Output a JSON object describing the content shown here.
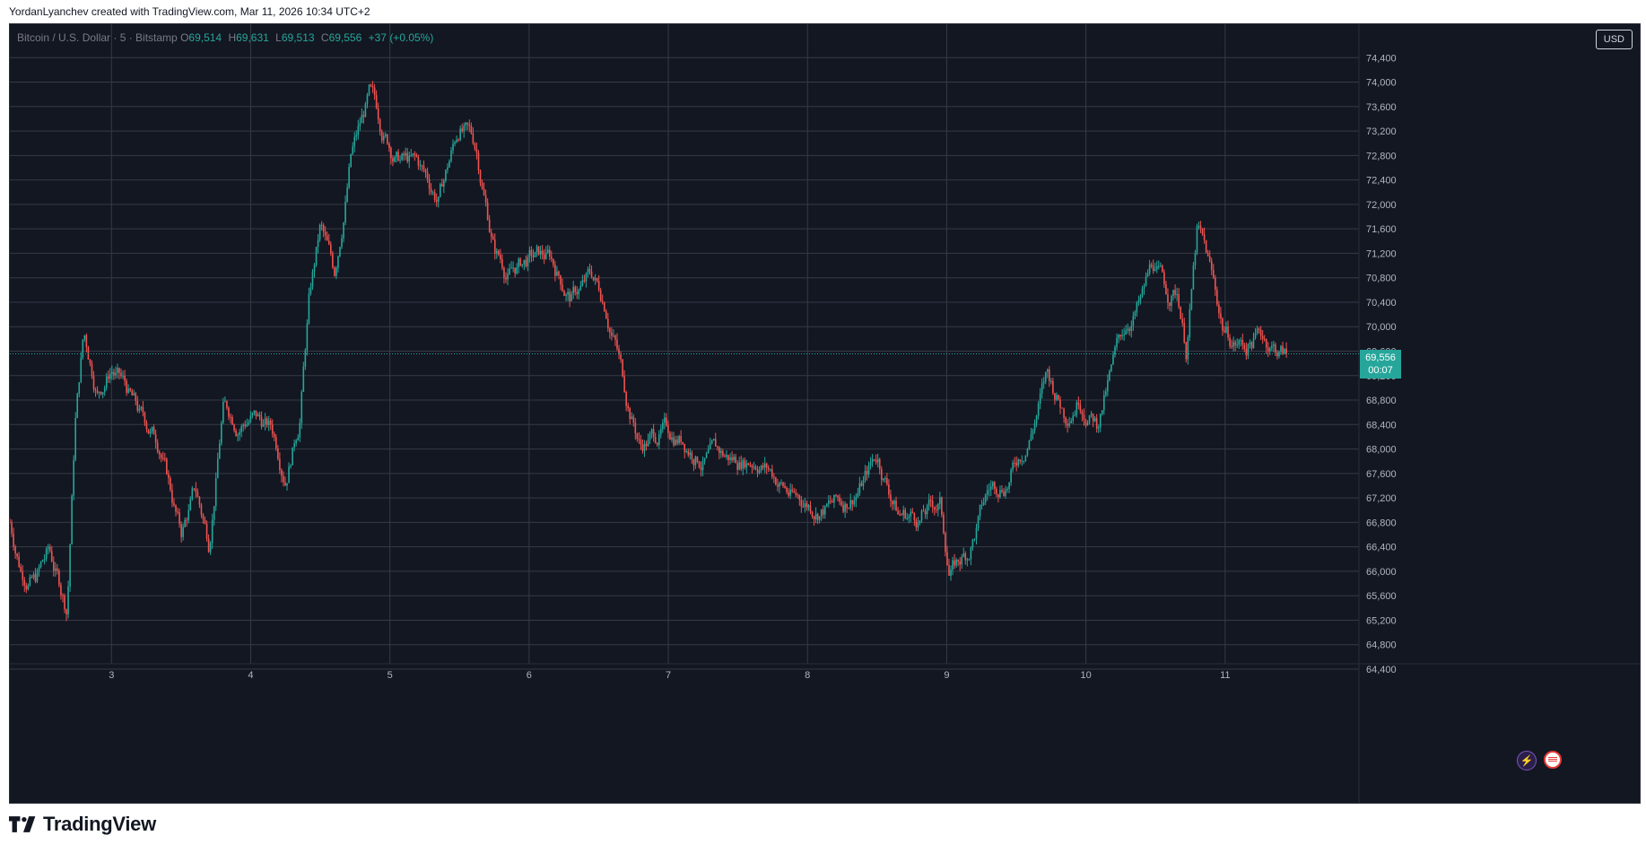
{
  "byline": "YordanLyanchev created with TradingView.com, Mar 11, 2026 10:34 UTC+2",
  "legend": {
    "symbol": "Bitcoin / U.S. Dollar · 5 · Bitstamp",
    "o_label": "O",
    "o": "69,514",
    "h_label": "H",
    "h": "69,631",
    "l_label": "L",
    "l": "69,513",
    "c_label": "C",
    "c": "69,556",
    "change": "+37 (+0.05%)"
  },
  "currency_button": "USD",
  "last_price": {
    "value": "69,556",
    "countdown": "00:07",
    "numeric": 69556
  },
  "logo_text": "TradingView",
  "colors": {
    "up": "#26a69a",
    "down": "#ef5350",
    "background": "#131722",
    "grid": "#363a45"
  },
  "icons": [
    "lightning-icon",
    "us-flag-icon"
  ],
  "chart_data": {
    "type": "candlestick",
    "symbol": "Bitcoin / U.S. Dollar",
    "interval": "5",
    "exchange": "Bitstamp",
    "grid": true,
    "ylim": [
      64400,
      74800
    ],
    "y_ticks": [
      64400,
      64800,
      65200,
      65600,
      66000,
      66400,
      66800,
      67200,
      67600,
      68000,
      68400,
      68800,
      69200,
      69600,
      70000,
      70400,
      70800,
      71200,
      71600,
      72000,
      72400,
      72800,
      73200,
      73600,
      74000,
      74400
    ],
    "y_tick_labels": [
      "64,400",
      "64,800",
      "65,200",
      "65,600",
      "66,000",
      "66,400",
      "66,800",
      "67,200",
      "67,600",
      "68,000",
      "68,400",
      "68,800",
      "69,200",
      "69,600",
      "70,000",
      "70,400",
      "70,800",
      "71,200",
      "71,600",
      "72,000",
      "72,400",
      "72,800",
      "73,200",
      "73,600",
      "74,000",
      "74,400"
    ],
    "xlim": [
      2.27,
      12.0
    ],
    "x_ticks": [
      3,
      4,
      5,
      6,
      7,
      8,
      9,
      10,
      11
    ],
    "x_tick_labels": [
      "3",
      "4",
      "5",
      "6",
      "7",
      "8",
      "9",
      "10",
      "11"
    ],
    "price_path": [
      [
        2.27,
        66800
      ],
      [
        2.35,
        66100
      ],
      [
        2.45,
        65900
      ],
      [
        2.55,
        66300
      ],
      [
        2.68,
        65400
      ],
      [
        2.74,
        68500
      ],
      [
        2.8,
        69900
      ],
      [
        2.9,
        69000
      ],
      [
        3.0,
        69400
      ],
      [
        3.1,
        69000
      ],
      [
        3.2,
        68500
      ],
      [
        3.35,
        68100
      ],
      [
        3.5,
        66600
      ],
      [
        3.6,
        67300
      ],
      [
        3.7,
        66500
      ],
      [
        3.8,
        68700
      ],
      [
        3.9,
        68500
      ],
      [
        4.0,
        68600
      ],
      [
        4.15,
        68300
      ],
      [
        4.25,
        67700
      ],
      [
        4.35,
        68600
      ],
      [
        4.42,
        70500
      ],
      [
        4.5,
        71600
      ],
      [
        4.6,
        70800
      ],
      [
        4.72,
        72800
      ],
      [
        4.85,
        73700
      ],
      [
        4.95,
        73200
      ],
      [
        5.05,
        72800
      ],
      [
        5.2,
        72600
      ],
      [
        5.35,
        72100
      ],
      [
        5.5,
        73300
      ],
      [
        5.62,
        72900
      ],
      [
        5.75,
        71300
      ],
      [
        5.85,
        70900
      ],
      [
        6.0,
        71100
      ],
      [
        6.15,
        71100
      ],
      [
        6.3,
        70500
      ],
      [
        6.45,
        70800
      ],
      [
        6.55,
        70400
      ],
      [
        6.62,
        69800
      ],
      [
        6.7,
        68900
      ],
      [
        6.8,
        68100
      ],
      [
        6.95,
        68300
      ],
      [
        7.1,
        68200
      ],
      [
        7.25,
        67900
      ],
      [
        7.45,
        67800
      ],
      [
        7.65,
        67900
      ],
      [
        7.8,
        67500
      ],
      [
        7.9,
        67200
      ],
      [
        8.05,
        67100
      ],
      [
        8.25,
        67100
      ],
      [
        8.4,
        67500
      ],
      [
        8.5,
        67900
      ],
      [
        8.65,
        67000
      ],
      [
        8.8,
        66900
      ],
      [
        8.95,
        67100
      ],
      [
        9.02,
        66000
      ],
      [
        9.15,
        66300
      ],
      [
        9.3,
        67300
      ],
      [
        9.45,
        67600
      ],
      [
        9.6,
        68300
      ],
      [
        9.72,
        69200
      ],
      [
        9.85,
        68600
      ],
      [
        9.95,
        69000
      ],
      [
        10.08,
        68500
      ],
      [
        10.2,
        69400
      ],
      [
        10.3,
        70100
      ],
      [
        10.4,
        70400
      ],
      [
        10.48,
        71000
      ],
      [
        10.58,
        70500
      ],
      [
        10.66,
        70600
      ],
      [
        10.72,
        69700
      ],
      [
        10.8,
        71600
      ],
      [
        10.88,
        71000
      ],
      [
        10.98,
        70000
      ],
      [
        11.05,
        69800
      ],
      [
        11.15,
        69700
      ],
      [
        11.25,
        69900
      ],
      [
        11.35,
        69700
      ],
      [
        11.44,
        69556
      ]
    ],
    "extrema": {
      "low": 65300,
      "high": 74050,
      "last": 69556
    }
  }
}
